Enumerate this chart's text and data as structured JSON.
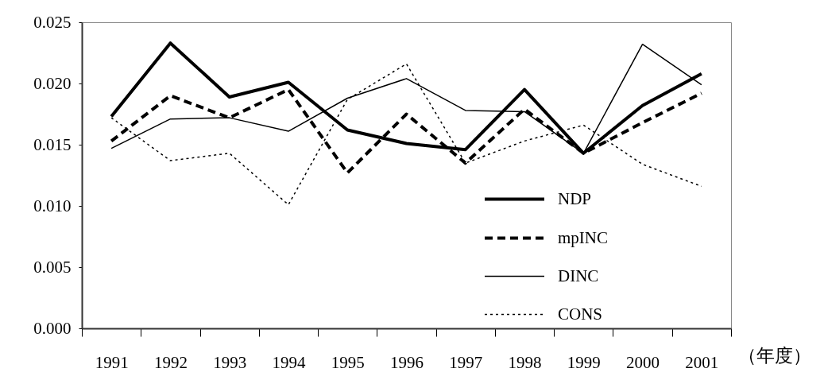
{
  "chart_data": {
    "type": "line",
    "xlabel": "（年度）",
    "categories": [
      "1991",
      "1992",
      "1993",
      "1994",
      "1995",
      "1996",
      "1997",
      "1998",
      "1999",
      "2000",
      "2001"
    ],
    "series": [
      {
        "name": "NDP",
        "color": "#000000",
        "line_style": "solid",
        "values": [
          0.0173,
          0.0233,
          0.0189,
          0.0201,
          0.0162,
          0.0151,
          0.0146,
          0.0195,
          0.0143,
          0.0182,
          0.0208
        ]
      },
      {
        "name": "mpINC",
        "color": "#000000",
        "line_style": "dashed",
        "values": [
          0.0153,
          0.019,
          0.0172,
          0.0195,
          0.0127,
          0.0175,
          0.0135,
          0.0179,
          0.0143,
          0.0168,
          0.0192
        ]
      },
      {
        "name": "DINC",
        "color": "#000000",
        "line_style": "solid",
        "values": [
          0.0147,
          0.0171,
          0.0172,
          0.0161,
          0.0188,
          0.0204,
          0.0178,
          0.0177,
          0.0143,
          0.0232,
          0.0199
        ]
      },
      {
        "name": "CONS",
        "color": "#000000",
        "line_style": "dotted",
        "values": [
          0.0172,
          0.0137,
          0.0143,
          0.0101,
          0.0187,
          0.0216,
          0.0135,
          0.0153,
          0.0166,
          0.0134,
          0.0116
        ]
      }
    ],
    "ylim": [
      0,
      0.025
    ],
    "yticks": [
      {
        "value": 0,
        "label": "0.000"
      },
      0.005,
      {
        "value": 0.01,
        "label": "0.010"
      },
      0.015,
      {
        "value": 0.02,
        "label": "0.020"
      },
      0.025
    ],
    "grid": false,
    "legend": "bottom right",
    "marker": "none"
  }
}
